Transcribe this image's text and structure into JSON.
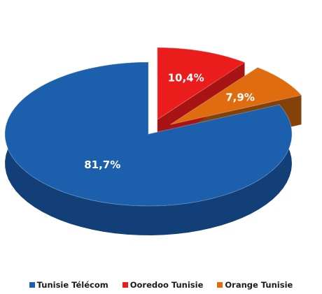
{
  "chart_data": {
    "type": "pie",
    "style": "3d-exploded",
    "categories": [
      "Tunisie Télécom",
      "Ooredoo Tunisie",
      "Orange Tunisie"
    ],
    "values": [
      81.7,
      10.4,
      7.9
    ],
    "labels": [
      "81,7%",
      "10,4%",
      "7,9%"
    ],
    "colors": [
      "#1c5fad",
      "#ea1c1c",
      "#df6c0e"
    ],
    "side_colors": [
      "#123f78",
      "#a81313",
      "#84420a"
    ],
    "legend_position": "bottom"
  }
}
